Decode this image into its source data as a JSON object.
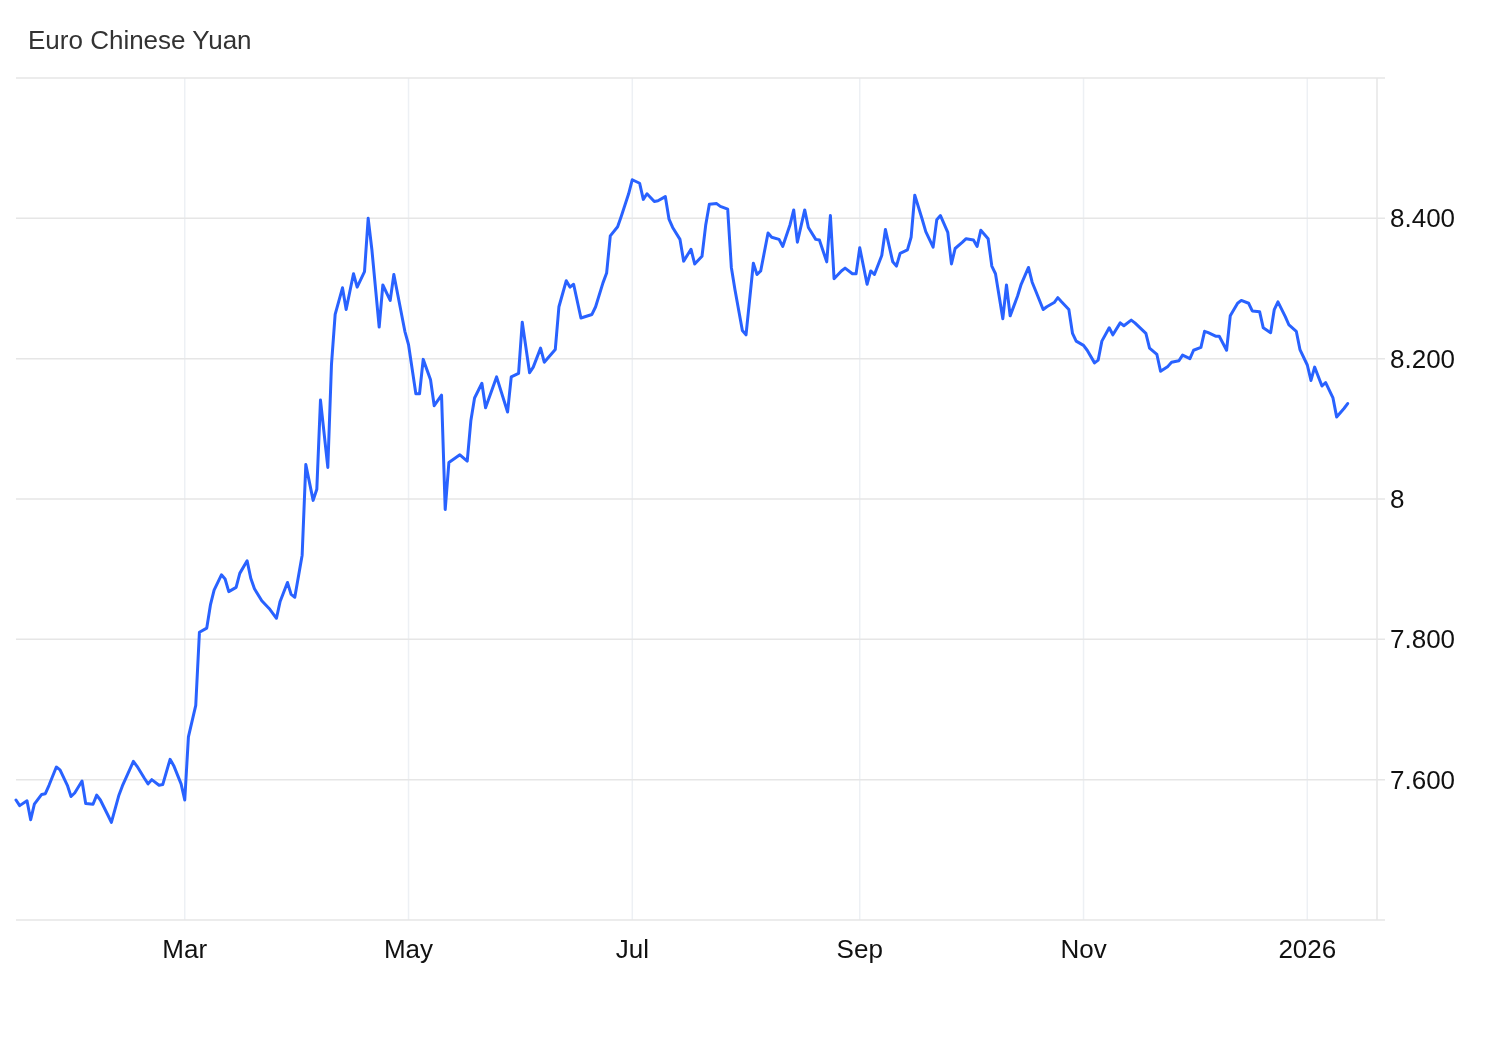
{
  "chart_data": {
    "type": "line",
    "title": "Euro Chinese Yuan",
    "x": [
      "2025-01-14",
      "2025-01-15",
      "2025-01-17",
      "2025-01-18",
      "2025-01-19",
      "2025-01-21",
      "2025-01-22",
      "2025-01-23",
      "2025-01-25",
      "2025-01-26",
      "2025-01-28",
      "2025-01-29",
      "2025-01-30",
      "2025-02-01",
      "2025-02-02",
      "2025-02-04",
      "2025-02-05",
      "2025-02-06",
      "2025-02-08",
      "2025-02-09",
      "2025-02-11",
      "2025-02-12",
      "2025-02-15",
      "2025-02-16",
      "2025-02-18",
      "2025-02-19",
      "2025-02-20",
      "2025-02-22",
      "2025-02-23",
      "2025-02-25",
      "2025-02-26",
      "2025-02-28",
      "2025-03-01",
      "2025-03-02",
      "2025-03-04",
      "2025-03-05",
      "2025-03-07",
      "2025-03-08",
      "2025-03-09",
      "2025-03-11",
      "2025-03-12",
      "2025-03-13",
      "2025-03-15",
      "2025-03-16",
      "2025-03-18",
      "2025-03-19",
      "2025-03-20",
      "2025-03-22",
      "2025-03-24",
      "2025-03-26",
      "2025-03-27",
      "2025-03-29",
      "2025-03-30",
      "2025-03-31",
      "2025-04-02",
      "2025-04-03",
      "2025-04-05",
      "2025-04-06",
      "2025-04-07",
      "2025-04-09",
      "2025-04-10",
      "2025-04-11",
      "2025-04-13",
      "2025-04-14",
      "2025-04-16",
      "2025-04-17",
      "2025-04-19",
      "2025-04-20",
      "2025-04-21",
      "2025-04-23",
      "2025-04-24",
      "2025-04-26",
      "2025-04-27",
      "2025-04-30",
      "2025-05-01",
      "2025-05-03",
      "2025-05-04",
      "2025-05-05",
      "2025-05-07",
      "2025-05-08",
      "2025-05-10",
      "2025-05-11",
      "2025-05-12",
      "2025-05-15",
      "2025-05-17",
      "2025-05-18",
      "2025-05-19",
      "2025-05-21",
      "2025-05-22",
      "2025-05-25",
      "2025-05-28",
      "2025-05-29",
      "2025-05-31",
      "2025-06-01",
      "2025-06-03",
      "2025-06-04",
      "2025-06-06",
      "2025-06-07",
      "2025-06-10",
      "2025-06-11",
      "2025-06-13",
      "2025-06-14",
      "2025-06-15",
      "2025-06-17",
      "2025-06-20",
      "2025-06-21",
      "2025-06-23",
      "2025-06-24",
      "2025-06-25",
      "2025-06-27",
      "2025-06-28",
      "2025-06-30",
      "2025-07-01",
      "2025-07-03",
      "2025-07-04",
      "2025-07-05",
      "2025-07-07",
      "2025-07-08",
      "2025-07-10",
      "2025-07-11",
      "2025-07-12",
      "2025-07-14",
      "2025-07-15",
      "2025-07-17",
      "2025-07-18",
      "2025-07-20",
      "2025-07-21",
      "2025-07-22",
      "2025-07-24",
      "2025-07-25",
      "2025-07-27",
      "2025-07-28",
      "2025-07-29",
      "2025-07-31",
      "2025-08-01",
      "2025-08-03",
      "2025-08-04",
      "2025-08-05",
      "2025-08-07",
      "2025-08-08",
      "2025-08-10",
      "2025-08-11",
      "2025-08-13",
      "2025-08-14",
      "2025-08-15",
      "2025-08-17",
      "2025-08-18",
      "2025-08-20",
      "2025-08-21",
      "2025-08-23",
      "2025-08-24",
      "2025-08-25",
      "2025-08-27",
      "2025-08-28",
      "2025-08-30",
      "2025-08-31",
      "2025-09-01",
      "2025-09-03",
      "2025-09-04",
      "2025-09-05",
      "2025-09-07",
      "2025-09-08",
      "2025-09-10",
      "2025-09-11",
      "2025-09-12",
      "2025-09-14",
      "2025-09-15",
      "2025-09-16",
      "2025-09-18",
      "2025-09-19",
      "2025-09-21",
      "2025-09-22",
      "2025-09-23",
      "2025-09-25",
      "2025-09-26",
      "2025-09-27",
      "2025-09-29",
      "2025-09-30",
      "2025-10-02",
      "2025-10-03",
      "2025-10-04",
      "2025-10-06",
      "2025-10-07",
      "2025-10-08",
      "2025-10-10",
      "2025-10-11",
      "2025-10-12",
      "2025-10-14",
      "2025-10-15",
      "2025-10-17",
      "2025-10-18",
      "2025-10-19",
      "2025-10-21",
      "2025-10-22",
      "2025-10-24",
      "2025-10-25",
      "2025-10-26",
      "2025-10-28",
      "2025-10-29",
      "2025-10-30",
      "2025-11-01",
      "2025-11-02",
      "2025-11-04",
      "2025-11-05",
      "2025-11-06",
      "2025-11-08",
      "2025-11-09",
      "2025-11-11",
      "2025-11-12",
      "2025-11-14",
      "2025-11-15",
      "2025-11-17",
      "2025-11-18",
      "2025-11-19",
      "2025-11-21",
      "2025-11-22",
      "2025-11-24",
      "2025-11-25",
      "2025-11-27",
      "2025-11-28",
      "2025-11-30",
      "2025-12-01",
      "2025-12-03",
      "2025-12-04",
      "2025-12-05",
      "2025-12-07",
      "2025-12-08",
      "2025-12-10",
      "2025-12-11",
      "2025-12-13",
      "2025-12-14",
      "2025-12-16",
      "2025-12-17",
      "2025-12-19",
      "2025-12-20",
      "2025-12-22",
      "2025-12-23",
      "2025-12-24",
      "2025-12-26",
      "2025-12-27",
      "2025-12-29",
      "2025-12-30",
      "2026-01-01",
      "2026-01-02",
      "2026-01-03",
      "2026-01-05",
      "2026-01-06",
      "2026-01-08",
      "2026-01-09",
      "2026-01-11",
      "2026-01-12"
    ],
    "series": [
      {
        "color": "#2962ff",
        "values": [
          7.571,
          7.563,
          7.57,
          7.543,
          7.565,
          7.579,
          7.58,
          7.592,
          7.618,
          7.614,
          7.592,
          7.576,
          7.581,
          7.598,
          7.566,
          7.565,
          7.578,
          7.571,
          7.55,
          7.539,
          7.577,
          7.591,
          7.626,
          7.619,
          7.602,
          7.594,
          7.6,
          7.592,
          7.593,
          7.629,
          7.62,
          7.594,
          7.571,
          7.661,
          7.706,
          7.81,
          7.816,
          7.849,
          7.87,
          7.892,
          7.886,
          7.868,
          7.874,
          7.894,
          7.912,
          7.887,
          7.872,
          7.855,
          7.844,
          7.83,
          7.854,
          7.881,
          7.864,
          7.86,
          7.92,
          8.049,
          7.998,
          8.014,
          8.141,
          8.045,
          8.192,
          8.263,
          8.301,
          8.27,
          8.321,
          8.302,
          8.324,
          8.4,
          8.356,
          8.245,
          8.305,
          8.283,
          8.32,
          8.239,
          8.22,
          8.15,
          8.15,
          8.199,
          8.17,
          8.133,
          8.148,
          7.985,
          8.052,
          8.063,
          8.054,
          8.112,
          8.144,
          8.165,
          8.13,
          8.174,
          8.124,
          8.174,
          8.179,
          8.252,
          8.18,
          8.188,
          8.215,
          8.195,
          8.213,
          8.274,
          8.311,
          8.302,
          8.306,
          8.258,
          8.263,
          8.274,
          8.308,
          8.322,
          8.375,
          8.388,
          8.403,
          8.435,
          8.455,
          8.45,
          8.427,
          8.435,
          8.424,
          8.425,
          8.431,
          8.399,
          8.387,
          8.37,
          8.339,
          8.356,
          8.335,
          8.346,
          8.39,
          8.42,
          8.421,
          8.417,
          8.413,
          8.33,
          8.298,
          8.24,
          8.234,
          8.336,
          8.32,
          8.325,
          8.379,
          8.373,
          8.37,
          8.36,
          8.391,
          8.412,
          8.366,
          8.412,
          8.387,
          8.37,
          8.369,
          8.338,
          8.404,
          8.314,
          8.325,
          8.329,
          8.321,
          8.321,
          8.358,
          8.306,
          8.325,
          8.32,
          8.347,
          8.384,
          8.338,
          8.332,
          8.35,
          8.355,
          8.373,
          8.433,
          8.399,
          8.381,
          8.359,
          8.398,
          8.404,
          8.38,
          8.335,
          8.357,
          8.366,
          8.371,
          8.369,
          8.36,
          8.383,
          8.371,
          8.332,
          8.321,
          8.257,
          8.305,
          8.261,
          8.289,
          8.306,
          8.33,
          8.309,
          8.296,
          8.27,
          8.274,
          8.28,
          8.287,
          8.281,
          8.27,
          8.236,
          8.225,
          8.219,
          8.212,
          8.194,
          8.198,
          8.225,
          8.244,
          8.234,
          8.251,
          8.247,
          8.255,
          8.251,
          8.241,
          8.236,
          8.215,
          8.206,
          8.182,
          8.189,
          8.195,
          8.197,
          8.205,
          8.2,
          8.212,
          8.216,
          8.239,
          8.237,
          8.232,
          8.232,
          8.212,
          8.261,
          8.279,
          8.283,
          8.279,
          8.268,
          8.267,
          8.244,
          8.237,
          8.27,
          8.281,
          8.26,
          8.248,
          8.239,
          8.213,
          8.191,
          8.169,
          8.188,
          8.161,
          8.166,
          8.144,
          8.117,
          8.129,
          8.136
        ]
      }
    ],
    "xlim": [
      "2025-01-14",
      "2026-01-20"
    ],
    "xticks": [
      {
        "value": "2025-03-01",
        "label": "Mar"
      },
      {
        "value": "2025-05-01",
        "label": "May"
      },
      {
        "value": "2025-07-01",
        "label": "Jul"
      },
      {
        "value": "2025-09-01",
        "label": "Sep"
      },
      {
        "value": "2025-11-01",
        "label": "Nov"
      },
      {
        "value": "2026-01-01",
        "label": "2026"
      }
    ],
    "ylim": [
      7.4,
      8.6
    ],
    "yticks": [
      {
        "value": 7.6,
        "label": "7.600"
      },
      {
        "value": 7.8,
        "label": "7.800"
      },
      8,
      {
        "value": 8.2,
        "label": "8.200"
      },
      {
        "value": 8.4,
        "label": "8.400"
      }
    ],
    "grid": true
  }
}
